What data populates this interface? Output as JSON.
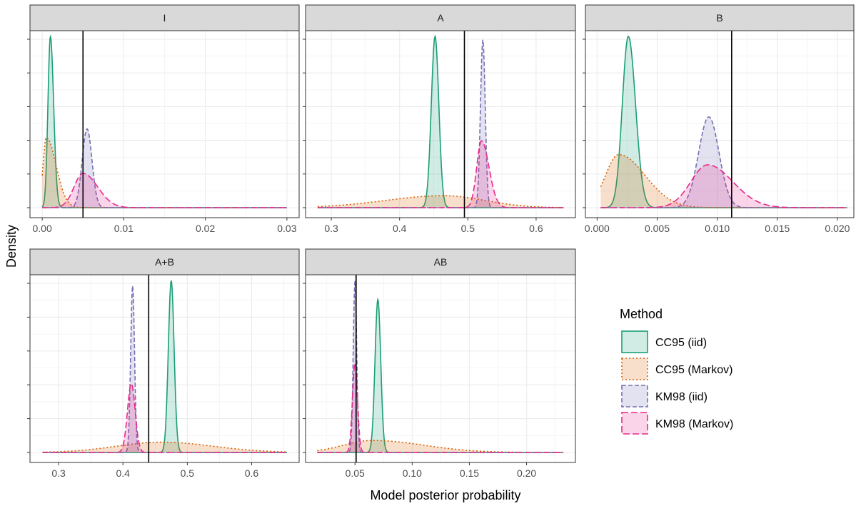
{
  "figure": {
    "xlabel": "Model posterior probability",
    "ylabel": "Density"
  },
  "legend": {
    "title": "Method",
    "placement": "right"
  },
  "series_styles": [
    {
      "name": "CC95 (iid)",
      "color": "#1b9e77",
      "dash": "solid"
    },
    {
      "name": "CC95 (Markov)",
      "color": "#d95f02",
      "dash": "dotted"
    },
    {
      "name": "KM98 (iid)",
      "color": "#7570b3",
      "dash": "dashed"
    },
    {
      "name": "KM98 (Markov)",
      "color": "#e7298a",
      "dash": "longdash"
    }
  ],
  "chart_data": [
    {
      "type": "area",
      "title": "I",
      "xlim": [
        -0.0015,
        0.0315
      ],
      "xticks": [
        0.0,
        0.01,
        0.02,
        0.03
      ],
      "xticklabels": [
        "0.00",
        "0.01",
        "0.02",
        "0.03"
      ],
      "grid": true,
      "reference_line_x": 0.005,
      "support": [
        0.0,
        0.03
      ],
      "series": [
        {
          "name": "CC95 (iid)",
          "peaks": [
            {
              "x": 0.001,
              "height": 1.0,
              "sdL": 0.0003,
              "sdR": 0.0004
            }
          ]
        },
        {
          "name": "CC95 (Markov)",
          "peaks": [
            {
              "x": 0.0005,
              "height": 0.41,
              "sdL": 0.0004,
              "sdR": 0.0012
            }
          ]
        },
        {
          "name": "KM98 (iid)",
          "peaks": [
            {
              "x": 0.0055,
              "height": 0.46,
              "sdL": 0.0006,
              "sdR": 0.0006
            }
          ]
        },
        {
          "name": "KM98 (Markov)",
          "peaks": [
            {
              "x": 0.005,
              "height": 0.2,
              "sdL": 0.0011,
              "sdR": 0.0018
            }
          ]
        }
      ]
    },
    {
      "type": "area",
      "title": "A",
      "xlim": [
        0.2623,
        0.6576
      ],
      "xticks": [
        0.3,
        0.4,
        0.5,
        0.6
      ],
      "xticklabels": [
        "0.3",
        "0.4",
        "0.5",
        "0.6"
      ],
      "grid": true,
      "reference_line_x": 0.495,
      "support": [
        0.28,
        0.64
      ],
      "series": [
        {
          "name": "CC95 (iid)",
          "peaks": [
            {
              "x": 0.452,
              "height": 1.0,
              "sdL": 0.0055,
              "sdR": 0.0055
            }
          ]
        },
        {
          "name": "CC95 (Markov)",
          "peaks": [
            {
              "x": 0.465,
              "height": 0.07,
              "sdL": 0.085,
              "sdR": 0.06
            }
          ]
        },
        {
          "name": "KM98 (iid)",
          "peaks": [
            {
              "x": 0.522,
              "height": 0.98,
              "sdL": 0.0035,
              "sdR": 0.0035
            }
          ]
        },
        {
          "name": "KM98 (Markov)",
          "peaks": [
            {
              "x": 0.52,
              "height": 0.39,
              "sdL": 0.007,
              "sdR": 0.011
            }
          ]
        }
      ]
    },
    {
      "type": "area",
      "title": "B",
      "xlim": [
        -0.00097,
        0.02137
      ],
      "xticks": [
        0.0,
        0.005,
        0.01,
        0.015,
        0.02
      ],
      "xticklabels": [
        "0.000",
        "0.005",
        "0.010",
        "0.015",
        "0.020"
      ],
      "grid": true,
      "reference_line_x": 0.0112,
      "support": [
        0.0003,
        0.0208
      ],
      "series": [
        {
          "name": "CC95 (iid)",
          "peaks": [
            {
              "x": 0.0026,
              "height": 1.0,
              "sdL": 0.0005,
              "sdR": 0.0006
            }
          ]
        },
        {
          "name": "CC95 (Markov)",
          "peaks": [
            {
              "x": 0.0018,
              "height": 0.31,
              "sdL": 0.0011,
              "sdR": 0.0022
            }
          ]
        },
        {
          "name": "KM98 (iid)",
          "peaks": [
            {
              "x": 0.0093,
              "height": 0.53,
              "sdL": 0.00085,
              "sdR": 0.00085
            }
          ]
        },
        {
          "name": "KM98 (Markov)",
          "peaks": [
            {
              "x": 0.0092,
              "height": 0.25,
              "sdL": 0.0014,
              "sdR": 0.0021
            }
          ]
        }
      ]
    },
    {
      "type": "area",
      "title": "A+B",
      "xlim": [
        0.2555,
        0.6738
      ],
      "xticks": [
        0.3,
        0.4,
        0.5,
        0.6
      ],
      "xticklabels": [
        "0.3",
        "0.4",
        "0.5",
        "0.6"
      ],
      "grid": true,
      "reference_line_x": 0.44,
      "support": [
        0.275,
        0.655
      ],
      "series": [
        {
          "name": "CC95 (iid)",
          "peaks": [
            {
              "x": 0.475,
              "height": 1.0,
              "sdL": 0.0045,
              "sdR": 0.0045
            }
          ]
        },
        {
          "name": "CC95 (Markov)",
          "peaks": [
            {
              "x": 0.46,
              "height": 0.06,
              "sdL": 0.07,
              "sdR": 0.08
            }
          ]
        },
        {
          "name": "KM98 (iid)",
          "peaks": [
            {
              "x": 0.415,
              "height": 0.97,
              "sdL": 0.003,
              "sdR": 0.003
            }
          ]
        },
        {
          "name": "KM98 (Markov)",
          "peaks": [
            {
              "x": 0.413,
              "height": 0.4,
              "sdL": 0.006,
              "sdR": 0.006
            }
          ]
        }
      ]
    },
    {
      "type": "area",
      "title": "AB",
      "xlim": [
        0.0068,
        0.2427
      ],
      "xticks": [
        0.05,
        0.1,
        0.15,
        0.2
      ],
      "xticklabels": [
        "0.05",
        "0.10",
        "0.15",
        "0.20"
      ],
      "grid": true,
      "reference_line_x": 0.051,
      "support": [
        0.017,
        0.232
      ],
      "series": [
        {
          "name": "CC95 (iid)",
          "peaks": [
            {
              "x": 0.07,
              "height": 0.89,
              "sdL": 0.0025,
              "sdR": 0.0025
            }
          ]
        },
        {
          "name": "CC95 (Markov)",
          "peaks": [
            {
              "x": 0.065,
              "height": 0.07,
              "sdL": 0.025,
              "sdR": 0.045
            }
          ]
        },
        {
          "name": "KM98 (iid)",
          "peaks": [
            {
              "x": 0.05,
              "height": 1.0,
              "sdL": 0.0015,
              "sdR": 0.0015
            }
          ]
        },
        {
          "name": "KM98 (Markov)",
          "peaks": [
            {
              "x": 0.05,
              "height": 0.52,
              "sdL": 0.0022,
              "sdR": 0.0022
            }
          ]
        }
      ]
    }
  ]
}
